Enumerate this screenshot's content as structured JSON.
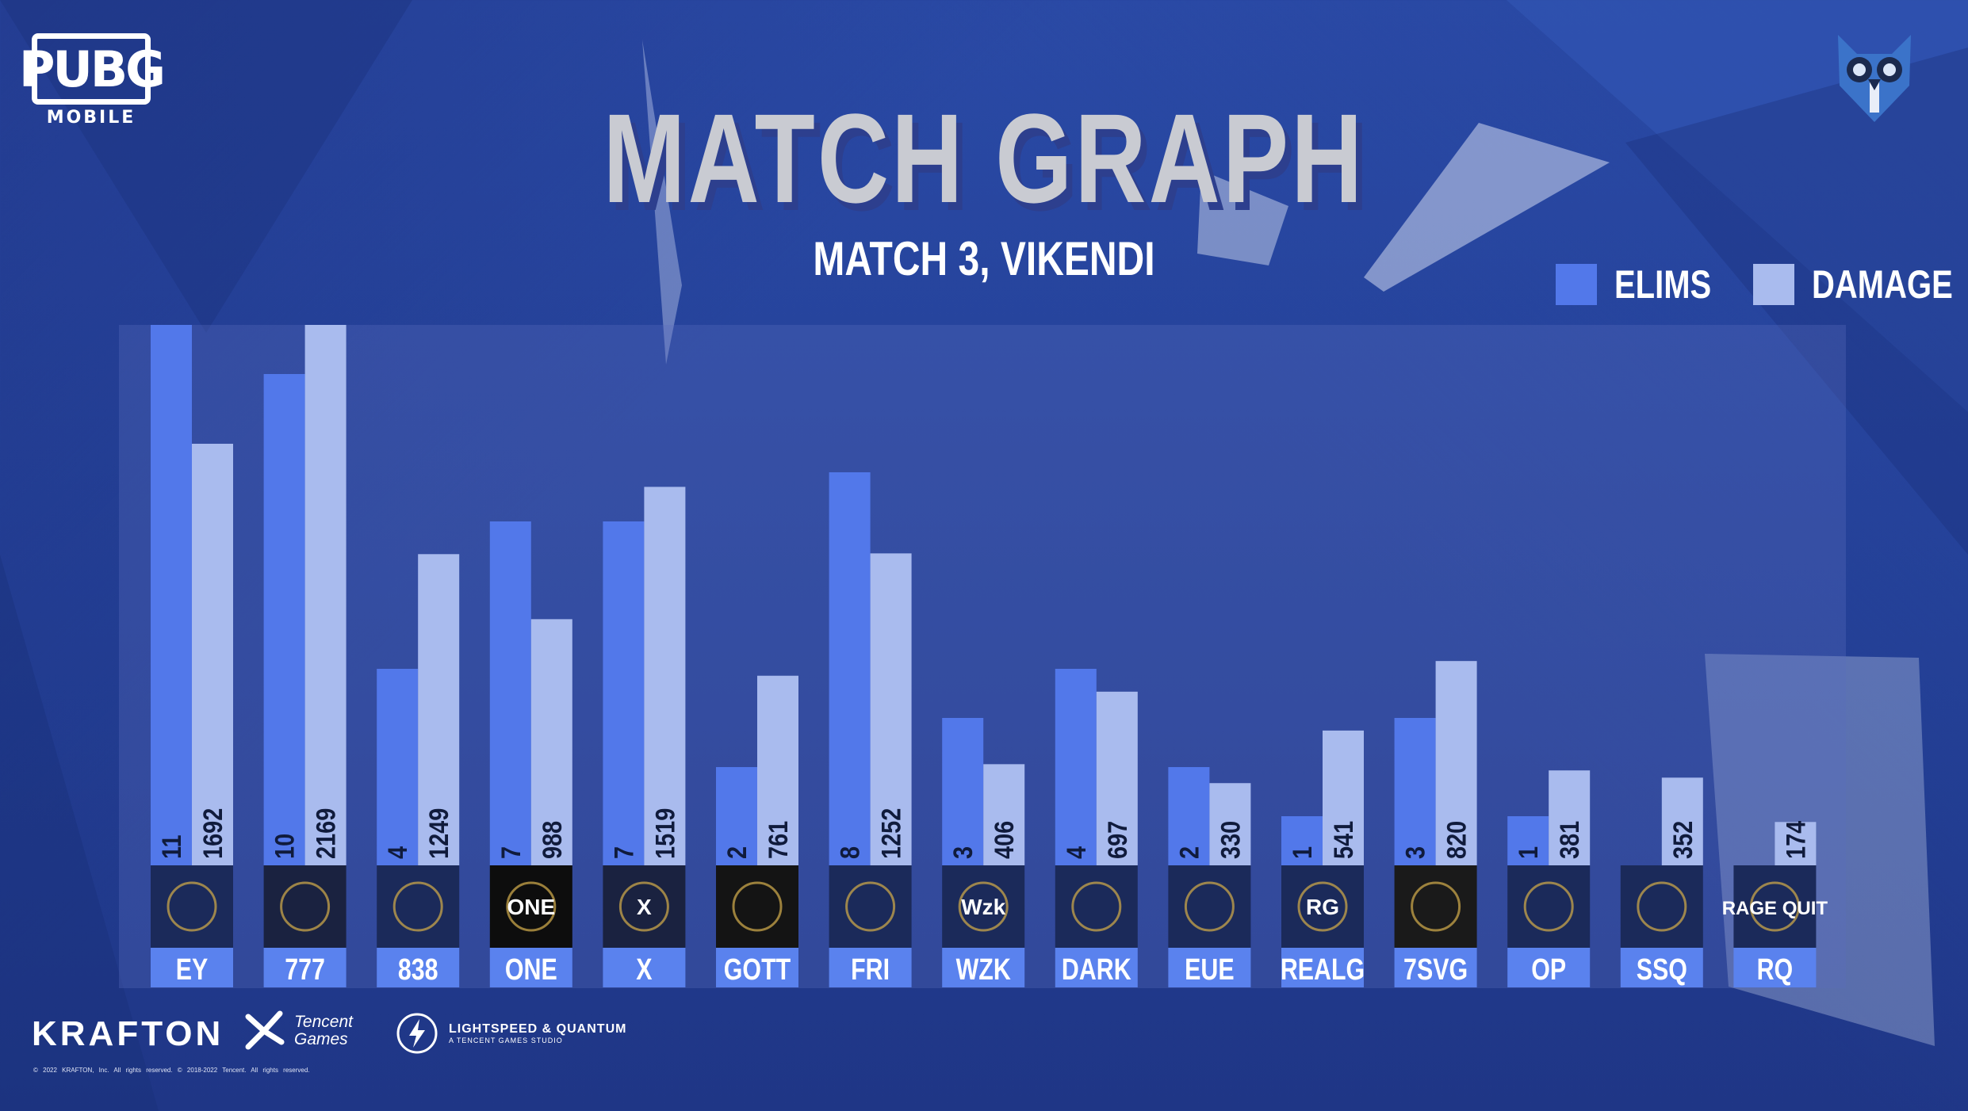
{
  "header": {
    "brand_logo": "PUBG",
    "brand_sub": "MOBILE",
    "title": "MATCH GRAPH",
    "subtitle": "MATCH 3, VIKENDI",
    "corner_logo_icon": "owl-icon"
  },
  "legend": [
    {
      "label": "ELIMS",
      "color": "#5278ea"
    },
    {
      "label": "DAMAGE",
      "color": "#a9bbee"
    }
  ],
  "chart_data": {
    "type": "bar",
    "title": "MATCH GRAPH",
    "subtitle": "MATCH 3, VIKENDI",
    "categories": [
      "EY",
      "777",
      "838",
      "ONE",
      "X",
      "GOTT",
      "FRI",
      "WZK",
      "DARK",
      "EUE",
      "REALG",
      "7SVG",
      "OP",
      "SSQ",
      "RQ"
    ],
    "series": [
      {
        "name": "ELIMS",
        "color": "#5278ea",
        "values": [
          11,
          10,
          4,
          7,
          7,
          2,
          8,
          3,
          4,
          2,
          1,
          3,
          1,
          0,
          0
        ]
      },
      {
        "name": "DAMAGE",
        "color": "#a9bbee",
        "values": [
          1692,
          2169,
          1249,
          988,
          1519,
          761,
          1252,
          406,
          697,
          330,
          541,
          820,
          381,
          352,
          174
        ]
      }
    ],
    "data_labels": {
      "ELIMS": [
        "11",
        "10",
        "4",
        "7",
        "7",
        "2",
        "8",
        "3",
        "4",
        "2",
        "1",
        "3",
        "1",
        "",
        ""
      ],
      "DAMAGE": [
        "1692",
        "2169",
        "1249",
        "988",
        "1519",
        "761",
        "1252",
        "406",
        "697",
        "330",
        "541",
        "820",
        "381",
        "352",
        "174"
      ]
    },
    "logo_text": {
      "WZK": "Wzk",
      "RQ": "RAGE QUIT",
      "ONE": "ONE",
      "X": "X",
      "REALG": "RG"
    },
    "legend_position": "top-right",
    "grid": false
  },
  "footer": {
    "krafton": "KRAFTON",
    "tencent_line1": "Tencent",
    "tencent_line2": "Games",
    "lq_line1": "LIGHTSPEED & QUANTUM",
    "lq_line2": "A TENCENT GAMES STUDIO",
    "copyright": "© 2022 KRAFTON, Inc. All rights reserved.   © 2018-2022 Tencent. All rights reserved."
  }
}
